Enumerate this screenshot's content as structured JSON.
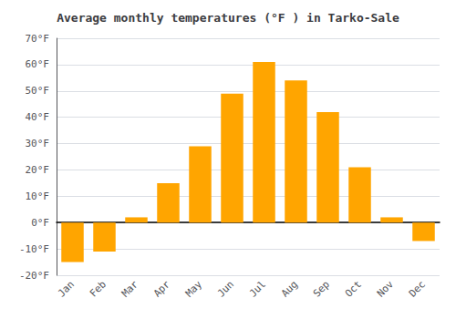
{
  "chart_data": {
    "type": "bar",
    "title": "Average monthly temperatures (°F ) in Tarko-Sale",
    "categories": [
      "Jan",
      "Feb",
      "Mar",
      "Apr",
      "May",
      "Jun",
      "Jul",
      "Aug",
      "Sep",
      "Oct",
      "Nov",
      "Dec"
    ],
    "values": [
      -15,
      -11,
      2,
      15,
      29,
      49,
      61,
      54,
      42,
      21,
      2,
      -7
    ],
    "color": "#FFA500",
    "ylim": [
      -20,
      70
    ],
    "yticks": [
      {
        "value": -20,
        "label": "-20°F"
      },
      {
        "value": -10,
        "label": "-10°F"
      },
      {
        "value": 0,
        "label": "0°F"
      },
      {
        "value": 10,
        "label": "10°F"
      },
      {
        "value": 20,
        "label": "20°F"
      },
      {
        "value": 30,
        "label": "30°F"
      },
      {
        "value": 40,
        "label": "40°F"
      },
      {
        "value": 50,
        "label": "50°F"
      },
      {
        "value": 60,
        "label": "60°F"
      },
      {
        "value": 70,
        "label": "70°F"
      }
    ],
    "grid": true
  }
}
